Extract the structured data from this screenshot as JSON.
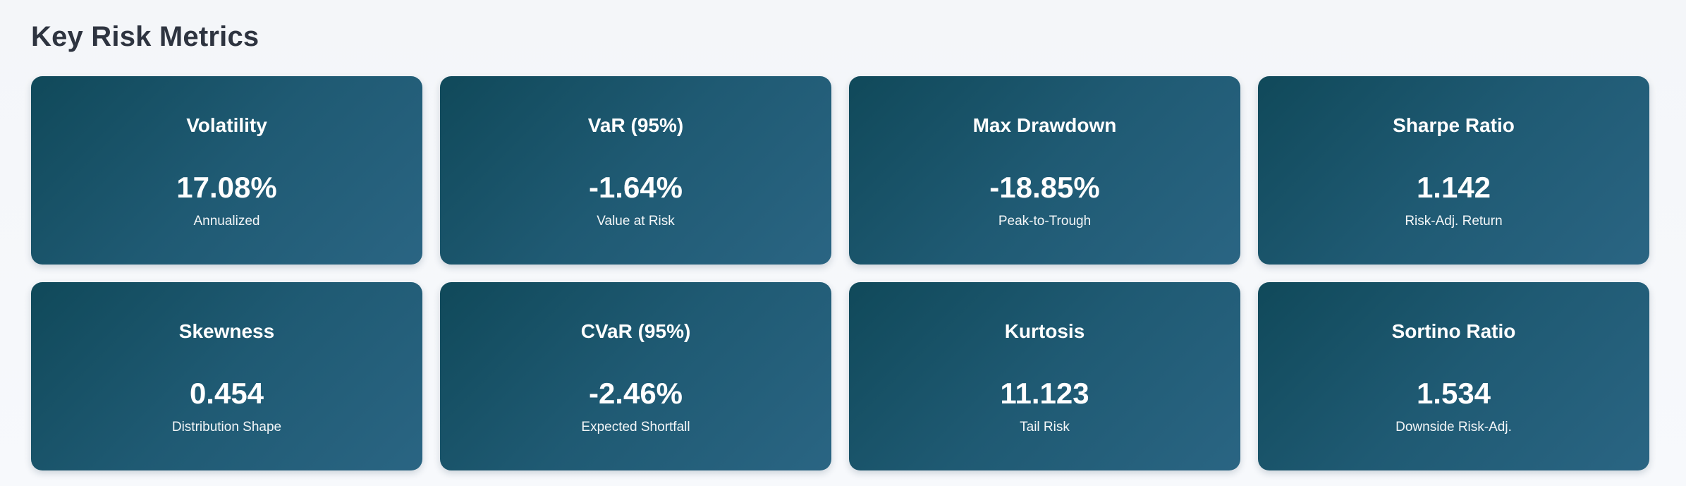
{
  "section": {
    "title": "Key Risk Metrics"
  },
  "metrics": [
    {
      "title": "Volatility",
      "value": "17.08%",
      "sub": "Annualized"
    },
    {
      "title": "VaR (95%)",
      "value": "-1.64%",
      "sub": "Value at Risk"
    },
    {
      "title": "Max Drawdown",
      "value": "-18.85%",
      "sub": "Peak-to-Trough"
    },
    {
      "title": "Sharpe Ratio",
      "value": "1.142",
      "sub": "Risk-Adj. Return"
    },
    {
      "title": "Skewness",
      "value": "0.454",
      "sub": "Distribution Shape"
    },
    {
      "title": "CVaR (95%)",
      "value": "-2.46%",
      "sub": "Expected Shortfall"
    },
    {
      "title": "Kurtosis",
      "value": "11.123",
      "sub": "Tail Risk"
    },
    {
      "title": "Sortino Ratio",
      "value": "1.534",
      "sub": "Downside Risk-Adj."
    }
  ],
  "colors": {
    "card_gradient_start": "#10495a",
    "card_gradient_end": "#2a6583",
    "title_text": "#2e3440",
    "page_background": "#f4f6f9"
  }
}
